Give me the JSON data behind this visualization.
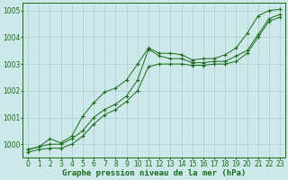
{
  "x": [
    0,
    1,
    2,
    3,
    4,
    5,
    6,
    7,
    8,
    9,
    10,
    11,
    12,
    13,
    14,
    15,
    16,
    17,
    18,
    19,
    20,
    21,
    22,
    23
  ],
  "y_main": [
    999.8,
    999.9,
    1000.0,
    1000.0,
    1000.2,
    1000.5,
    1001.0,
    1001.3,
    1001.5,
    1001.8,
    1002.4,
    1003.55,
    1003.3,
    1003.2,
    1003.2,
    1003.05,
    1003.05,
    1003.1,
    1003.1,
    1003.3,
    1003.5,
    1004.1,
    1004.7,
    1004.85
  ],
  "y_upper": [
    999.8,
    999.9,
    1000.2,
    1000.05,
    1000.3,
    1001.05,
    1001.55,
    1001.95,
    1002.1,
    1002.4,
    1003.0,
    1003.6,
    1003.4,
    1003.4,
    1003.35,
    1003.15,
    1003.2,
    1003.2,
    1003.35,
    1003.6,
    1004.15,
    1004.8,
    1005.0,
    1005.05
  ],
  "y_lower": [
    999.7,
    999.8,
    999.85,
    999.85,
    1000.0,
    1000.3,
    1000.75,
    1001.1,
    1001.3,
    1001.6,
    1002.0,
    1002.9,
    1003.0,
    1003.0,
    1003.0,
    1002.95,
    1002.95,
    1003.0,
    1003.0,
    1003.1,
    1003.4,
    1004.0,
    1004.6,
    1004.75
  ],
  "line_color": "#1a6b1a",
  "bg_color": "#cce8e8",
  "grid_color": "#aacece",
  "title": "Graphe pression niveau de la mer (hPa)",
  "ylim": [
    999.5,
    1005.3
  ],
  "yticks": [
    1000,
    1001,
    1002,
    1003,
    1004,
    1005
  ],
  "xticks": [
    0,
    1,
    2,
    3,
    4,
    5,
    6,
    7,
    8,
    9,
    10,
    11,
    12,
    13,
    14,
    15,
    16,
    17,
    18,
    19,
    20,
    21,
    22,
    23
  ],
  "title_fontsize": 6.5,
  "tick_fontsize": 5.5,
  "marker_size": 3.5,
  "lw": 0.7
}
